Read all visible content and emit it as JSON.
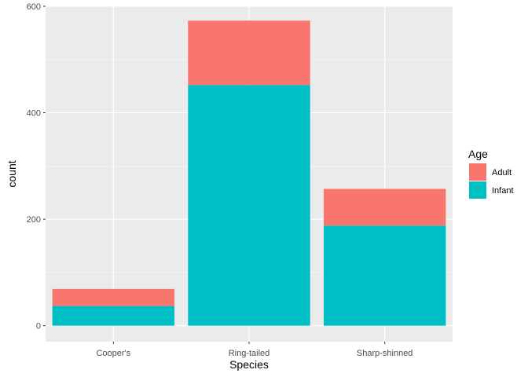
{
  "chart_data": {
    "type": "bar",
    "stacked": true,
    "categories": [
      "Cooper's",
      "Ring-tailed",
      "Sharp-shinned"
    ],
    "series": [
      {
        "name": "Adult",
        "values": [
          32,
          121,
          69
        ],
        "color": "#F8766D"
      },
      {
        "name": "Infant",
        "values": [
          37,
          452,
          188
        ],
        "color": "#00BFC4"
      }
    ],
    "xlabel": "Species",
    "ylabel": "count",
    "ylim": [
      -30,
      600
    ],
    "yticks": [
      0,
      200,
      400,
      600
    ],
    "y_minor_ticks": [
      100,
      300,
      500
    ],
    "grid": true,
    "legend": {
      "title": "Age",
      "placement": "right",
      "entries": [
        "Adult",
        "Infant"
      ]
    },
    "panel_background": "#EBEBEB",
    "grid_color": "#FFFFFF"
  }
}
